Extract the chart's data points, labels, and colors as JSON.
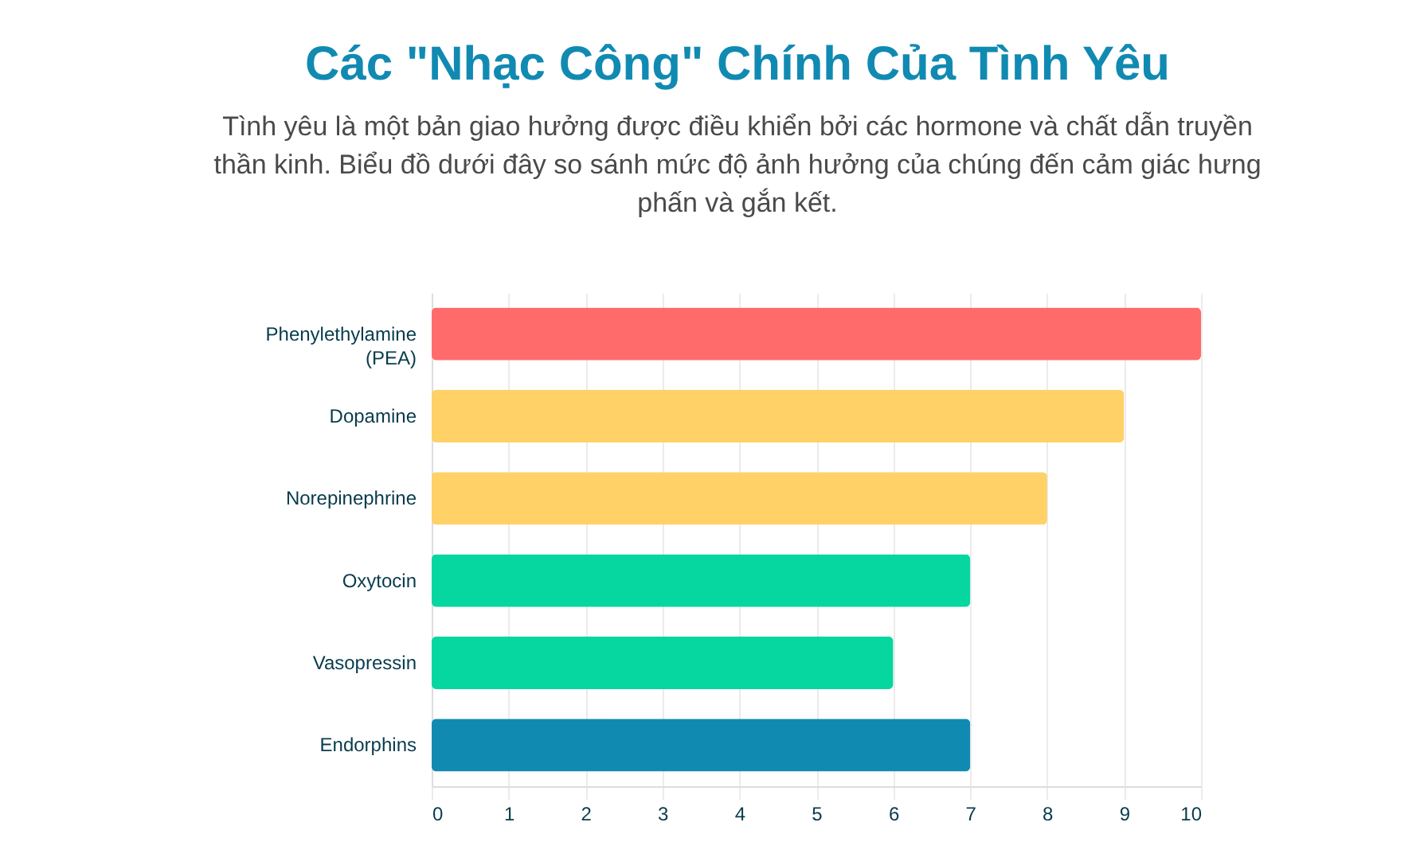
{
  "chart_data": {
    "type": "bar",
    "orientation": "horizontal",
    "title": "Các \"Nhạc Công\" Chính Của Tình Yêu",
    "subtitle": "Tình yêu là một bản giao hưởng được điều khiển bởi các hormone và chất dẫn truyền thần kinh. Biểu đồ dưới đây so sánh mức độ ảnh hưởng của chúng đến cảm giác hưng phấn và gắn kết.",
    "categories": [
      "Phenylethylamine (PEA)",
      "Dopamine",
      "Norepinephrine",
      "Oxytocin",
      "Vasopressin",
      "Endorphins"
    ],
    "values": [
      10,
      9,
      8,
      7,
      6,
      7
    ],
    "colors": [
      "#ff6b6b",
      "#ffd166",
      "#ffd166",
      "#06d6a0",
      "#06d6a0",
      "#118ab2"
    ],
    "xlim": [
      0,
      10
    ],
    "xticks": [
      0,
      1,
      2,
      3,
      4,
      5,
      6,
      7,
      8,
      9,
      10
    ],
    "grid": "x"
  }
}
